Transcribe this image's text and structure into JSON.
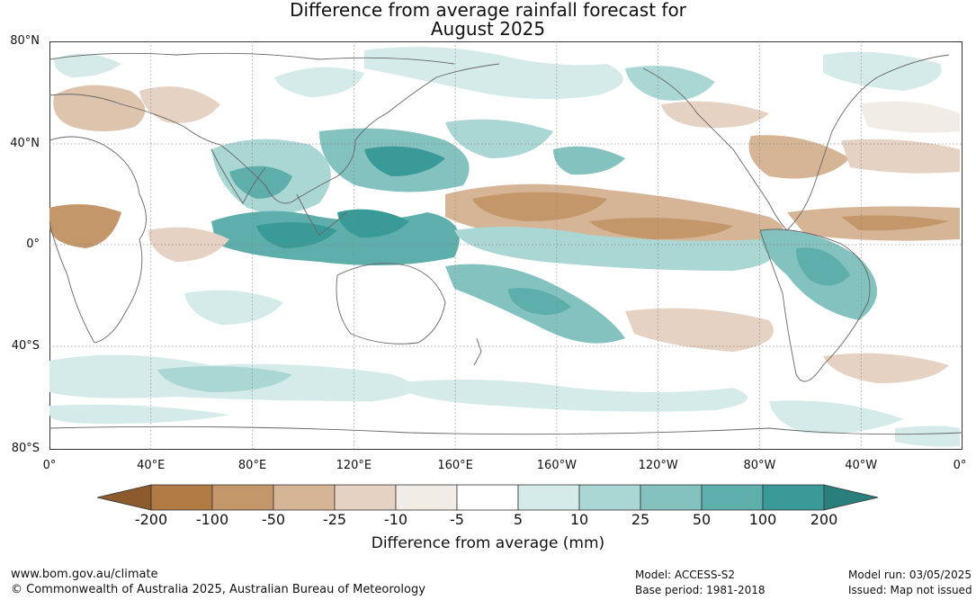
{
  "title": {
    "line1": "Difference from average rainfall forecast for",
    "line2": "August 2025"
  },
  "map": {
    "lat_labels": [
      "80°N",
      "40°N",
      "0°",
      "40°S",
      "80°S"
    ],
    "lon_labels": [
      "0°",
      "40°E",
      "80°E",
      "120°E",
      "160°E",
      "160°W",
      "120°W",
      "80°W",
      "40°W",
      "0°"
    ],
    "coastline_color": "#666666",
    "grid_color": "#888888"
  },
  "legend": {
    "tick_labels": [
      "-200",
      "-100",
      "-50",
      "-25",
      "-10",
      "-5",
      "5",
      "10",
      "25",
      "50",
      "100",
      "200"
    ],
    "colors": [
      "#8c5a2b",
      "#b07a45",
      "#c4976a",
      "#d6b597",
      "#e6d2c2",
      "#f2ece6",
      "#ffffff",
      "#d4ebe9",
      "#aad6d4",
      "#84c2bf",
      "#5eaeac",
      "#3a9a97",
      "#2a7f7c"
    ],
    "label": "Difference from average (mm)"
  },
  "footer": {
    "website": "www.bom.gov.au/climate",
    "copyright": "© Commonwealth of Australia 2025, Australian Bureau of Meteorology",
    "model": "Model: ACCESS-S2",
    "base_period": "Base period: 1981-2018",
    "model_run": "Model run: 03/05/2025",
    "issued": "Issued: Map not issued"
  }
}
